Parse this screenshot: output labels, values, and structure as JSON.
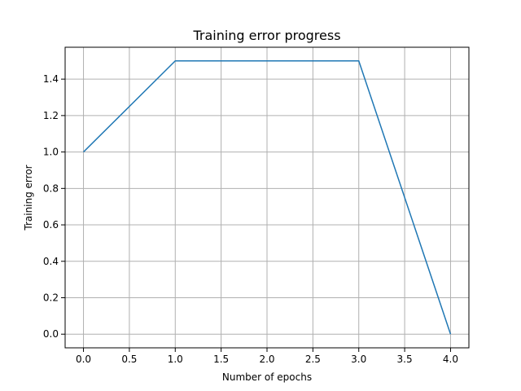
{
  "chart_data": {
    "type": "line",
    "title": "Training error progress",
    "xlabel": "Number of epochs",
    "ylabel": "Training error",
    "xlim": [
      -0.2,
      4.2
    ],
    "ylim": [
      -0.075,
      1.575
    ],
    "xticks": [
      0.0,
      0.5,
      1.0,
      1.5,
      2.0,
      2.5,
      3.0,
      3.5,
      4.0
    ],
    "xtick_labels": [
      "0.0",
      "0.5",
      "1.0",
      "1.5",
      "2.0",
      "2.5",
      "3.0",
      "3.5",
      "4.0"
    ],
    "yticks": [
      0.0,
      0.2,
      0.4,
      0.6,
      0.8,
      1.0,
      1.2,
      1.4
    ],
    "ytick_labels": [
      "0.0",
      "0.2",
      "0.4",
      "0.6",
      "0.8",
      "1.0",
      "1.2",
      "1.4"
    ],
    "grid": true,
    "series": [
      {
        "x": [
          0,
          1,
          2,
          3,
          4
        ],
        "values": [
          1.0,
          1.5,
          1.5,
          1.5,
          0.0
        ],
        "color": "#1f77b4"
      }
    ]
  }
}
